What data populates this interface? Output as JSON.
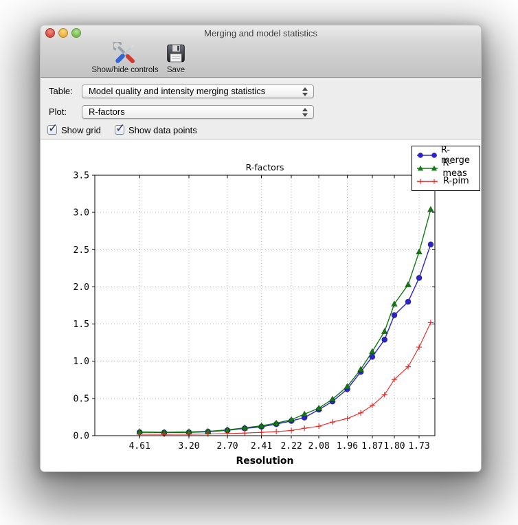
{
  "window": {
    "title": "Merging and model statistics",
    "traffic_lights": {
      "close": "close-button",
      "minimize": "minimize-button",
      "zoom": "zoom-button"
    },
    "toolbar": [
      {
        "label": "Show/hide controls",
        "icon": "tools-icon"
      },
      {
        "label": "Save",
        "icon": "save-icon"
      }
    ]
  },
  "controls": {
    "table_label": "Table:",
    "table_value": "Model quality and intensity merging statistics",
    "plot_label": "Plot:",
    "plot_value": "R-factors",
    "checkboxes": [
      {
        "label": "Show grid",
        "checked": true
      },
      {
        "label": "Show data points",
        "checked": true
      }
    ]
  },
  "chart_data": {
    "type": "line",
    "title": "R-factors",
    "xlabel": "Resolution",
    "ylabel": "",
    "ylim": [
      0.0,
      3.5
    ],
    "ytick_step": 0.5,
    "grid": true,
    "legend_position": "upper right",
    "x_note": "x axis is resolution d (angstrom), plotted linearly in 1/d^2, high d at left",
    "categories": [
      4.61,
      3.72,
      3.2,
      2.92,
      2.7,
      2.54,
      2.41,
      2.31,
      2.22,
      2.15,
      2.08,
      2.02,
      1.96,
      1.91,
      1.87,
      1.83,
      1.8,
      1.76,
      1.73,
      1.7
    ],
    "xtick_labels": [
      "4.61",
      "3.20",
      "2.70",
      "2.41",
      "2.22",
      "2.08",
      "1.96",
      "1.87",
      "1.80",
      "1.73"
    ],
    "series": [
      {
        "name": "R-merge",
        "color": "#2b24cc",
        "marker": "circle",
        "values": [
          0.046,
          0.042,
          0.045,
          0.053,
          0.072,
          0.098,
          0.12,
          0.155,
          0.198,
          0.244,
          0.35,
          0.46,
          0.625,
          0.857,
          1.06,
          1.29,
          1.62,
          1.8,
          2.12,
          2.57
        ]
      },
      {
        "name": "R-meas",
        "color": "#117a11",
        "marker": "triangle",
        "values": [
          0.05,
          0.046,
          0.05,
          0.058,
          0.078,
          0.105,
          0.133,
          0.168,
          0.215,
          0.29,
          0.37,
          0.49,
          0.66,
          0.89,
          1.13,
          1.4,
          1.77,
          2.03,
          2.47,
          3.04
        ]
      },
      {
        "name": "R-pim",
        "color": "#e62420",
        "marker": "plus",
        "values": [
          0.019,
          0.018,
          0.019,
          0.022,
          0.028,
          0.035,
          0.044,
          0.055,
          0.07,
          0.1,
          0.127,
          0.183,
          0.23,
          0.306,
          0.406,
          0.55,
          0.755,
          0.926,
          1.19,
          1.52
        ]
      }
    ]
  }
}
